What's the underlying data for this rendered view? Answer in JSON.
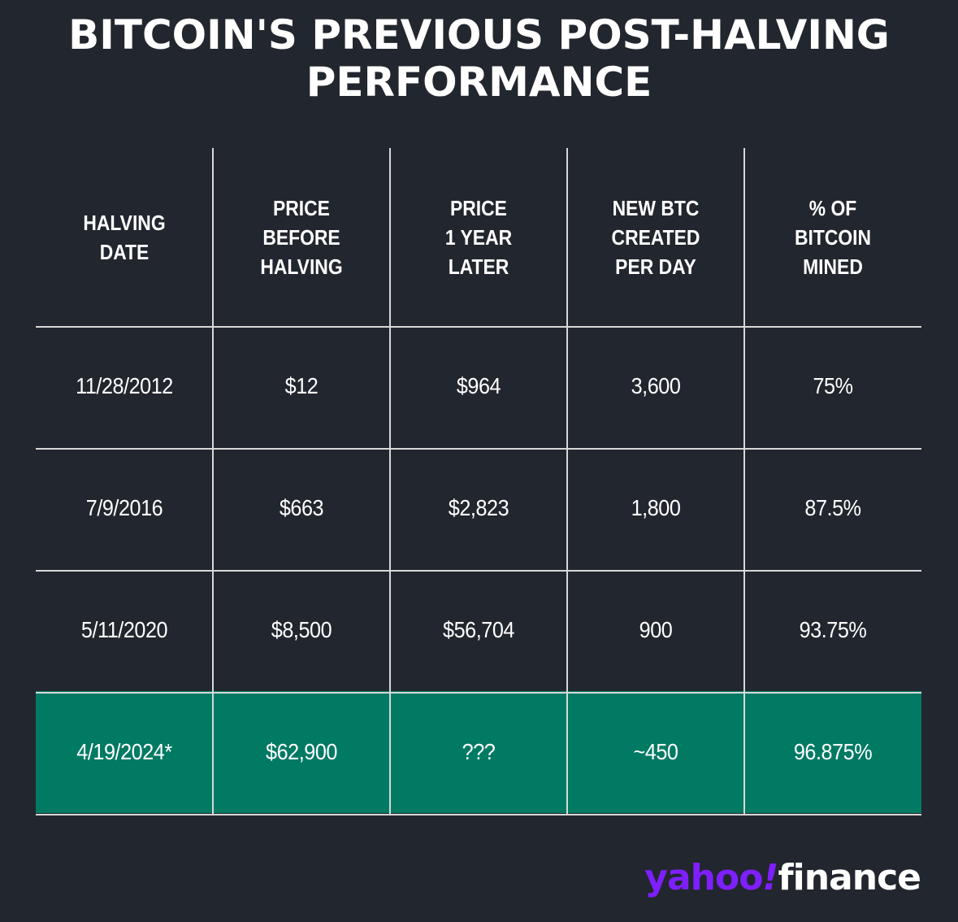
{
  "title": {
    "line1": "BITCOIN'S PREVIOUS POST-HALVING",
    "line2": "PERFORMANCE"
  },
  "colors": {
    "background": "#22262e",
    "highlight_row": "#007a63",
    "grid": "#d8d8d8",
    "logo_purple": "#7e1fff"
  },
  "logo": {
    "part1": "yahoo",
    "part2": "!",
    "part3": "finance"
  },
  "chart_data": {
    "type": "table",
    "columns": [
      [
        "HALVING",
        "DATE"
      ],
      [
        "PRICE",
        "BEFORE",
        "HALVING"
      ],
      [
        "PRICE",
        "1 YEAR",
        "LATER"
      ],
      [
        "NEW BTC",
        "CREATED",
        "PER DAY"
      ],
      [
        "% OF",
        "BITCOIN",
        "MINED"
      ]
    ],
    "rows": [
      [
        "11/28/2012",
        "$12",
        "$964",
        "3,600",
        "75%"
      ],
      [
        "7/9/2016",
        "$663",
        "$2,823",
        "1,800",
        "87.5%"
      ],
      [
        "5/11/2020",
        "$8,500",
        "$56,704",
        "900",
        "93.75%"
      ],
      [
        "4/19/2024*",
        "$62,900",
        "???",
        "~450",
        "96.875%"
      ]
    ],
    "highlighted_row": 3
  }
}
